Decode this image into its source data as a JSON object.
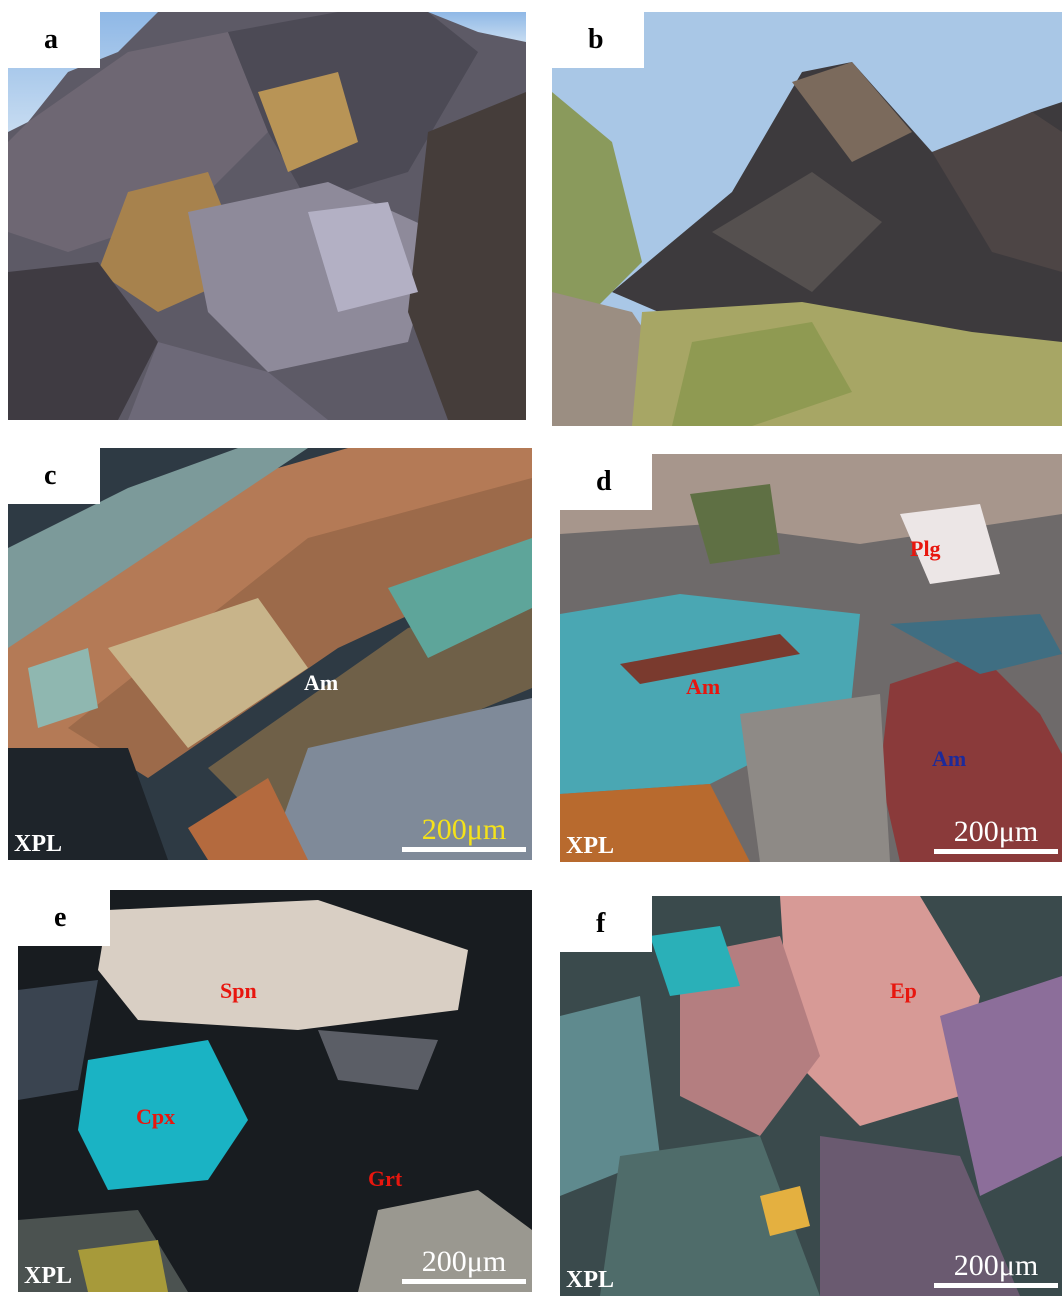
{
  "panels": {
    "a": {
      "label": "a"
    },
    "b": {
      "label": "b"
    },
    "c": {
      "label": "c",
      "light": "XPL",
      "scale_text": "200μm",
      "minerals": [
        "Am"
      ]
    },
    "d": {
      "label": "d",
      "light": "XPL",
      "scale_text": "200μm",
      "minerals": [
        "Plg",
        "Am",
        "Am"
      ]
    },
    "e": {
      "label": "e",
      "light": "XPL",
      "scale_text": "200μm",
      "minerals": [
        "Spn",
        "Cpx",
        "Grt"
      ]
    },
    "f": {
      "label": "f",
      "light": "XPL",
      "scale_text": "200μm",
      "minerals": [
        "Ep"
      ]
    }
  },
  "colors": {
    "mineral_red": "#e8160e",
    "mineral_white": "#ffffff",
    "mineral_blue": "#1d2a9a",
    "scale_yellow": "#f4e21a"
  }
}
